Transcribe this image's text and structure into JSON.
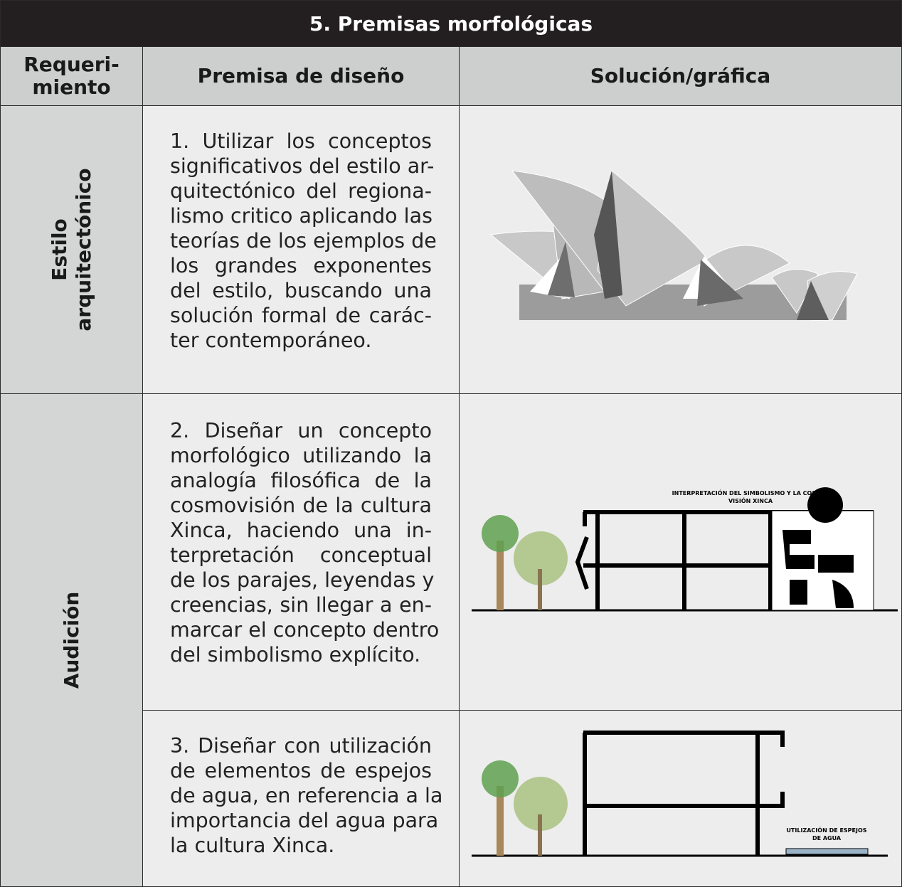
{
  "header": {
    "title": "5. Premisas morfológicas"
  },
  "table": {
    "header": {
      "requirement": [
        "Requeri-",
        "miento"
      ],
      "premise": "Premisa de diseño",
      "solution": "Solución/gráfica"
    },
    "groups": [
      {
        "requirement": [
          "Estilo",
          "arquitectónico"
        ],
        "rows": [
          {
            "premise": [
              "1. Utilizar los conceptos",
              "significativos del estilo ar-",
              "quitectónico del regiona-",
              "lismo critico aplicando las",
              "teorías de los ejemplos de",
              "los grandes exponentes",
              "del estilo, buscando una",
              "solución formal de carác-",
              "ter contemporáneo."
            ]
          }
        ]
      },
      {
        "requirement": [
          "Audición"
        ],
        "rows": [
          {
            "premise": [
              "2. Diseñar un concepto",
              "morfológico utilizando la",
              "analogía filosófica de la",
              "cosmovisión de la cultura",
              "Xinca, haciendo una in-",
              "terpretación conceptual",
              "de los parajes, leyendas y",
              "creencias, sin llegar a en-",
              "marcar el concepto dentro",
              "del simbolismo explícito."
            ],
            "caption": [
              "INTERPRETACIÓN DEL SIMBOLISMO Y LA COSMO-",
              "VISIÓN  XINCA"
            ]
          },
          {
            "premise": [
              "3. Diseñar con utilización",
              "de elementos de espejos",
              "de agua, en referencia a la",
              "importancia del agua para",
              "la cultura Xinca."
            ],
            "caption": [
              "UTILIZACIÓN DE ESPEJOS",
              "DE AGUA"
            ]
          }
        ]
      }
    ]
  }
}
